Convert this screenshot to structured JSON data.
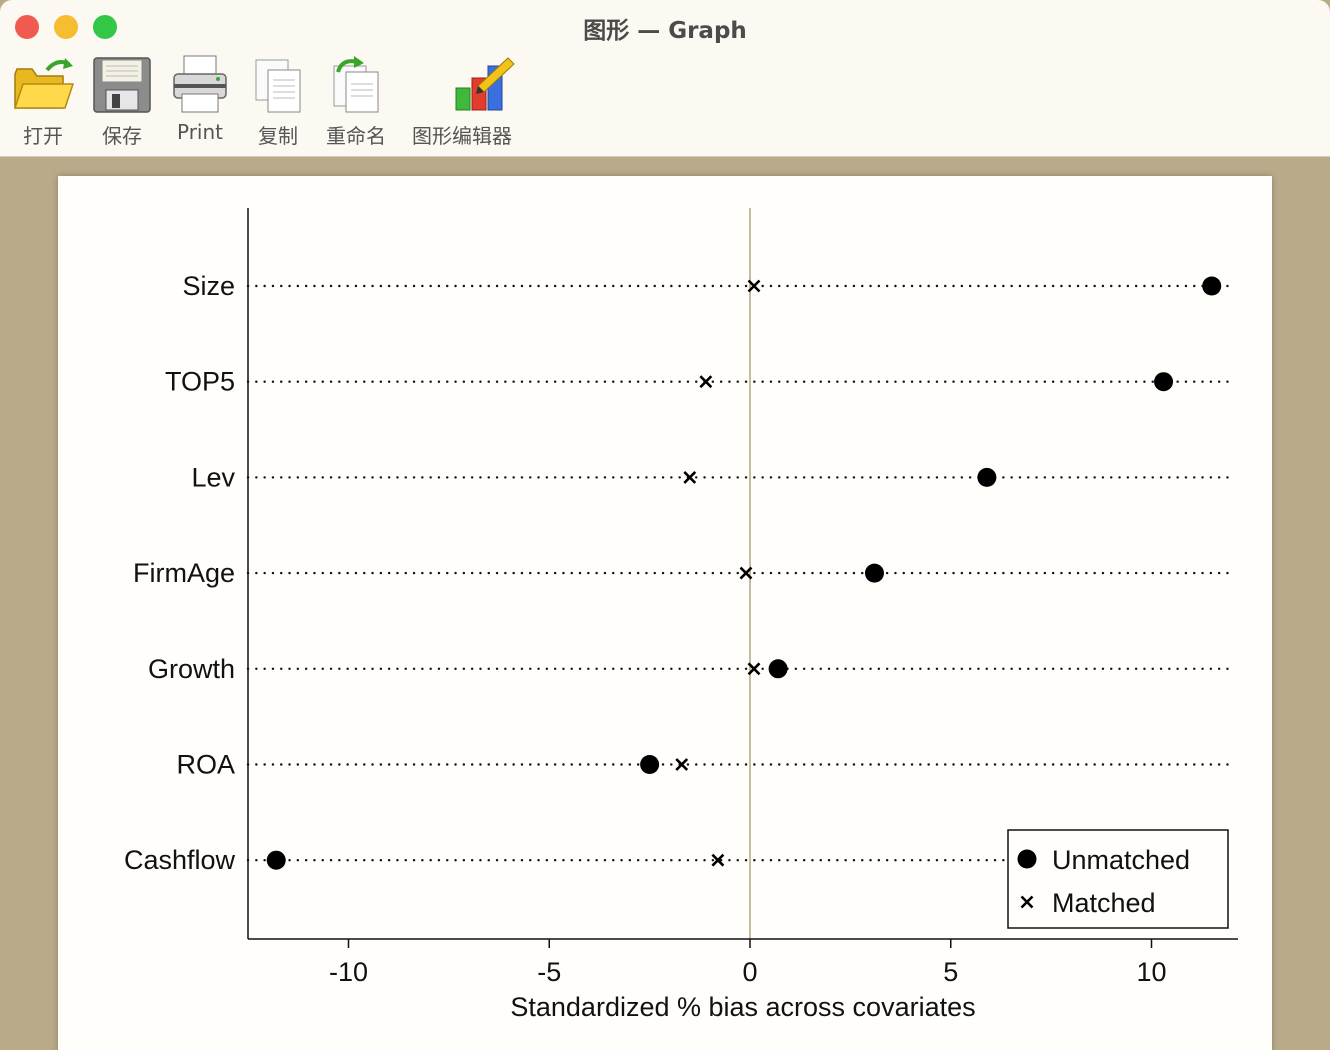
{
  "window": {
    "title": "图形 — Graph"
  },
  "toolbar": {
    "items": [
      {
        "label": "打开",
        "icon": "folder-open-icon"
      },
      {
        "label": "保存",
        "icon": "floppy-disk-icon"
      },
      {
        "label": "Print",
        "icon": "printer-icon"
      },
      {
        "label": "复制",
        "icon": "copy-icon"
      },
      {
        "label": "重命名",
        "icon": "rename-icon"
      },
      {
        "label": "图形编辑器",
        "icon": "graph-editor-icon"
      }
    ]
  },
  "chart_data": {
    "type": "scatter",
    "xlabel": "Standardized % bias across covariates",
    "xlim": [
      -12.5,
      12.2
    ],
    "xticks": [
      "-10",
      "-5",
      "0",
      "5",
      "10"
    ],
    "categories": [
      "Size",
      "TOP5",
      "Lev",
      "FirmAge",
      "Growth",
      "ROA",
      "Cashflow"
    ],
    "series": [
      {
        "name": "Unmatched",
        "marker": "dot",
        "values": [
          11.5,
          10.3,
          5.9,
          3.1,
          0.7,
          -2.5,
          -11.8
        ]
      },
      {
        "name": "Matched",
        "marker": "x",
        "values": [
          0.1,
          -1.1,
          -1.5,
          -0.1,
          0.1,
          -1.7,
          -0.8
        ]
      }
    ],
    "reference_line_x": 0,
    "grid": "dotted horizontal",
    "legend": "bottom-right"
  }
}
